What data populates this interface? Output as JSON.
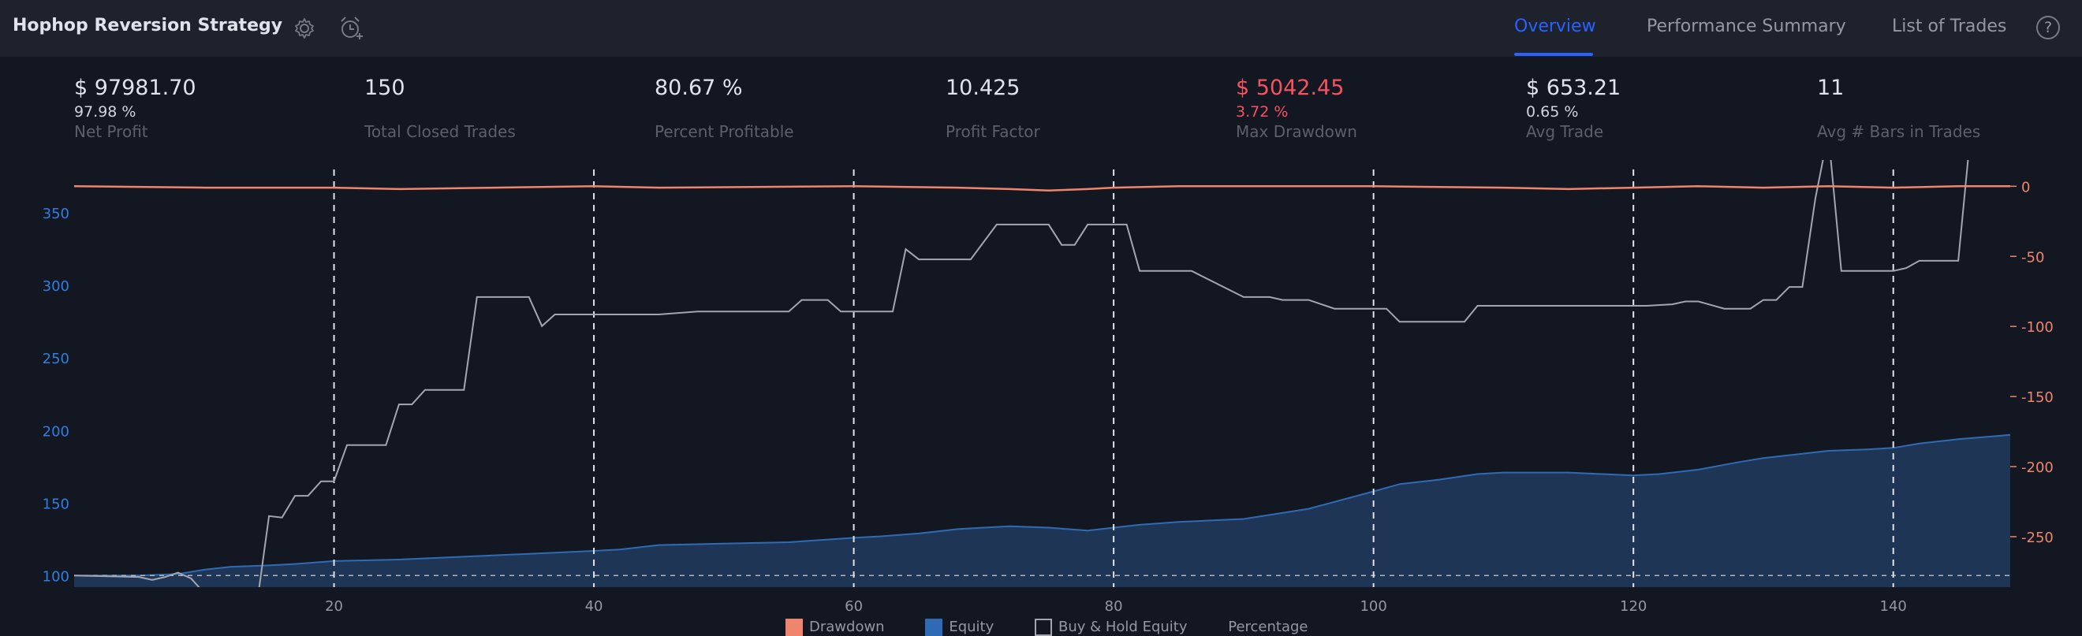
{
  "header": {
    "title": "Hophop Reversion Strategy",
    "tabs": [
      {
        "label": "Overview",
        "active": true
      },
      {
        "label": "Performance Summary",
        "active": false
      },
      {
        "label": "List of Trades",
        "active": false
      }
    ],
    "help": "?"
  },
  "metrics": [
    {
      "value": "$ 97981.70",
      "sub": "97.98 %",
      "label": "Net Profit"
    },
    {
      "value": "150",
      "sub": "",
      "label": "Total Closed Trades"
    },
    {
      "value": "80.67 %",
      "sub": "",
      "label": "Percent Profitable"
    },
    {
      "value": "10.425",
      "sub": "",
      "label": "Profit Factor"
    },
    {
      "value": "$ 5042.45",
      "sub": "3.72 %",
      "label": "Max Drawdown"
    },
    {
      "value": "$ 653.21",
      "sub": "0.65 %",
      "label": "Avg Trade"
    },
    {
      "value": "11",
      "sub": "",
      "label": "Avg # Bars in Trades"
    }
  ],
  "legend": {
    "drawdown": "Drawdown",
    "equity": "Equity",
    "buyhold": "Buy & Hold Equity",
    "percentage": "Percentage"
  },
  "colors": {
    "equity_fill": "#1e3556",
    "equity_line": "#2f6bb5",
    "drawdown": "#f0856d",
    "buyhold": "#a3a6af",
    "left_axis": "#2f7ee0",
    "right_axis": "#f0856d"
  },
  "chart_data": {
    "type": "area",
    "x_ticks": [
      20,
      40,
      60,
      80,
      100,
      120,
      140
    ],
    "x_range": [
      0,
      149
    ],
    "left_axis": {
      "ticks": [
        100,
        150,
        200,
        250,
        300,
        350
      ],
      "range": [
        92,
        380
      ]
    },
    "right_axis": {
      "ticks": [
        0,
        -50,
        -100,
        -150,
        -200,
        -250
      ],
      "range": [
        -286,
        12
      ]
    },
    "equity": {
      "x": [
        0,
        5,
        8,
        10,
        12,
        15,
        17,
        20,
        25,
        30,
        35,
        40,
        42,
        45,
        50,
        55,
        60,
        62,
        65,
        68,
        70,
        72,
        75,
        78,
        80,
        82,
        85,
        90,
        95,
        100,
        102,
        105,
        108,
        110,
        115,
        120,
        122,
        125,
        128,
        130,
        133,
        135,
        138,
        140,
        142,
        145,
        149
      ],
      "y": [
        100,
        100,
        101,
        104,
        106,
        107,
        108,
        110,
        111,
        113,
        115,
        117,
        118,
        121,
        122,
        123,
        126,
        127,
        129,
        132,
        133,
        134,
        133,
        131,
        133,
        135,
        137,
        139,
        146,
        158,
        163,
        166,
        170,
        171,
        171,
        169,
        170,
        173,
        178,
        181,
        184,
        186,
        187,
        188,
        191,
        194,
        197
      ]
    },
    "buyhold": {
      "x": [
        0,
        5,
        6,
        7,
        8,
        9,
        10,
        11,
        12,
        13,
        14,
        15,
        16,
        17,
        18,
        19,
        20,
        21,
        24,
        25,
        26,
        27,
        30,
        31,
        35,
        36,
        37,
        40,
        45,
        48,
        50,
        55,
        56,
        58,
        59,
        60,
        63,
        64,
        65,
        68,
        69,
        71,
        72,
        75,
        76,
        77,
        78,
        80,
        81,
        82,
        85,
        86,
        90,
        92,
        93,
        95,
        97,
        100,
        101,
        102,
        107,
        108,
        109,
        110,
        115,
        120,
        121,
        123,
        124,
        125,
        127,
        128,
        129,
        130,
        131,
        132,
        133,
        134,
        135,
        136,
        137,
        139,
        140,
        141,
        142,
        145,
        146,
        147,
        148,
        149
      ],
      "y": [
        100,
        99,
        97,
        99,
        102,
        98,
        88,
        82,
        74,
        76,
        76,
        141,
        140,
        155,
        155,
        165,
        165,
        190,
        190,
        218,
        218,
        228,
        228,
        292,
        292,
        272,
        280,
        280,
        280,
        282,
        282,
        282,
        290,
        290,
        282,
        282,
        282,
        325,
        318,
        318,
        318,
        342,
        342,
        342,
        328,
        328,
        342,
        342,
        342,
        310,
        310,
        310,
        292,
        292,
        290,
        290,
        284,
        284,
        284,
        275,
        275,
        286,
        286,
        286,
        286,
        286,
        286,
        287,
        289,
        289,
        284,
        284,
        284,
        290,
        290,
        299,
        299,
        360,
        405,
        310,
        310,
        310,
        310,
        312,
        317,
        317,
        410,
        410,
        400,
        400
      ]
    },
    "drawdown": {
      "x": [
        0,
        10,
        20,
        25,
        40,
        45,
        60,
        68,
        72,
        75,
        78,
        80,
        85,
        100,
        110,
        115,
        120,
        125,
        130,
        135,
        140,
        145,
        149
      ],
      "y": [
        0,
        -1,
        -1,
        -2,
        0,
        -1,
        0,
        -1,
        -2,
        -3,
        -2,
        -1,
        0,
        0,
        -1,
        -2,
        -1,
        0,
        -1,
        0,
        -1,
        0,
        0
      ]
    }
  }
}
